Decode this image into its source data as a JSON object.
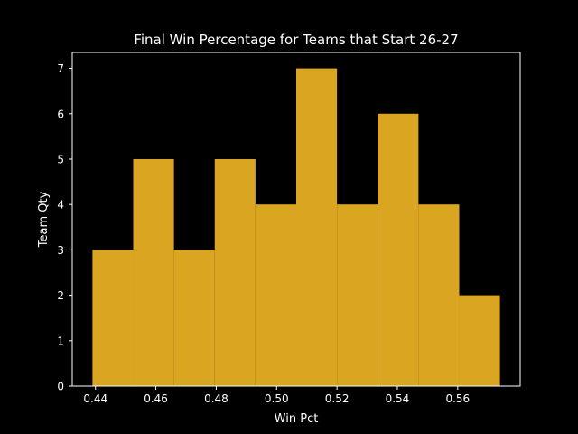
{
  "chart_data": {
    "type": "bar",
    "subtype": "histogram",
    "title": "Final Win Percentage for Teams that Start 26-27",
    "xlabel": "Win Pct",
    "ylabel": "Team Qty",
    "bin_edges": [
      0.439,
      0.4525,
      0.466,
      0.4795,
      0.493,
      0.5065,
      0.52,
      0.5335,
      0.547,
      0.5605,
      0.574
    ],
    "values": [
      3,
      5,
      3,
      5,
      4,
      7,
      4,
      6,
      4,
      2
    ],
    "xlim": [
      0.4323,
      0.5807
    ],
    "ylim": [
      0,
      7.35
    ],
    "xticks": [
      0.44,
      0.46,
      0.48,
      0.5,
      0.52,
      0.54,
      0.56
    ],
    "xtick_labels": [
      "0.44",
      "0.46",
      "0.48",
      "0.50",
      "0.52",
      "0.54",
      "0.56"
    ],
    "yticks": [
      0,
      1,
      2,
      3,
      4,
      5,
      6,
      7
    ],
    "ytick_labels": [
      "0",
      "1",
      "2",
      "3",
      "4",
      "5",
      "6",
      "7"
    ],
    "grid": false,
    "legend": "none",
    "colors": {
      "background": "#000000",
      "bar": "#DAA520",
      "axes": "#ffffff",
      "text": "#ffffff"
    }
  }
}
